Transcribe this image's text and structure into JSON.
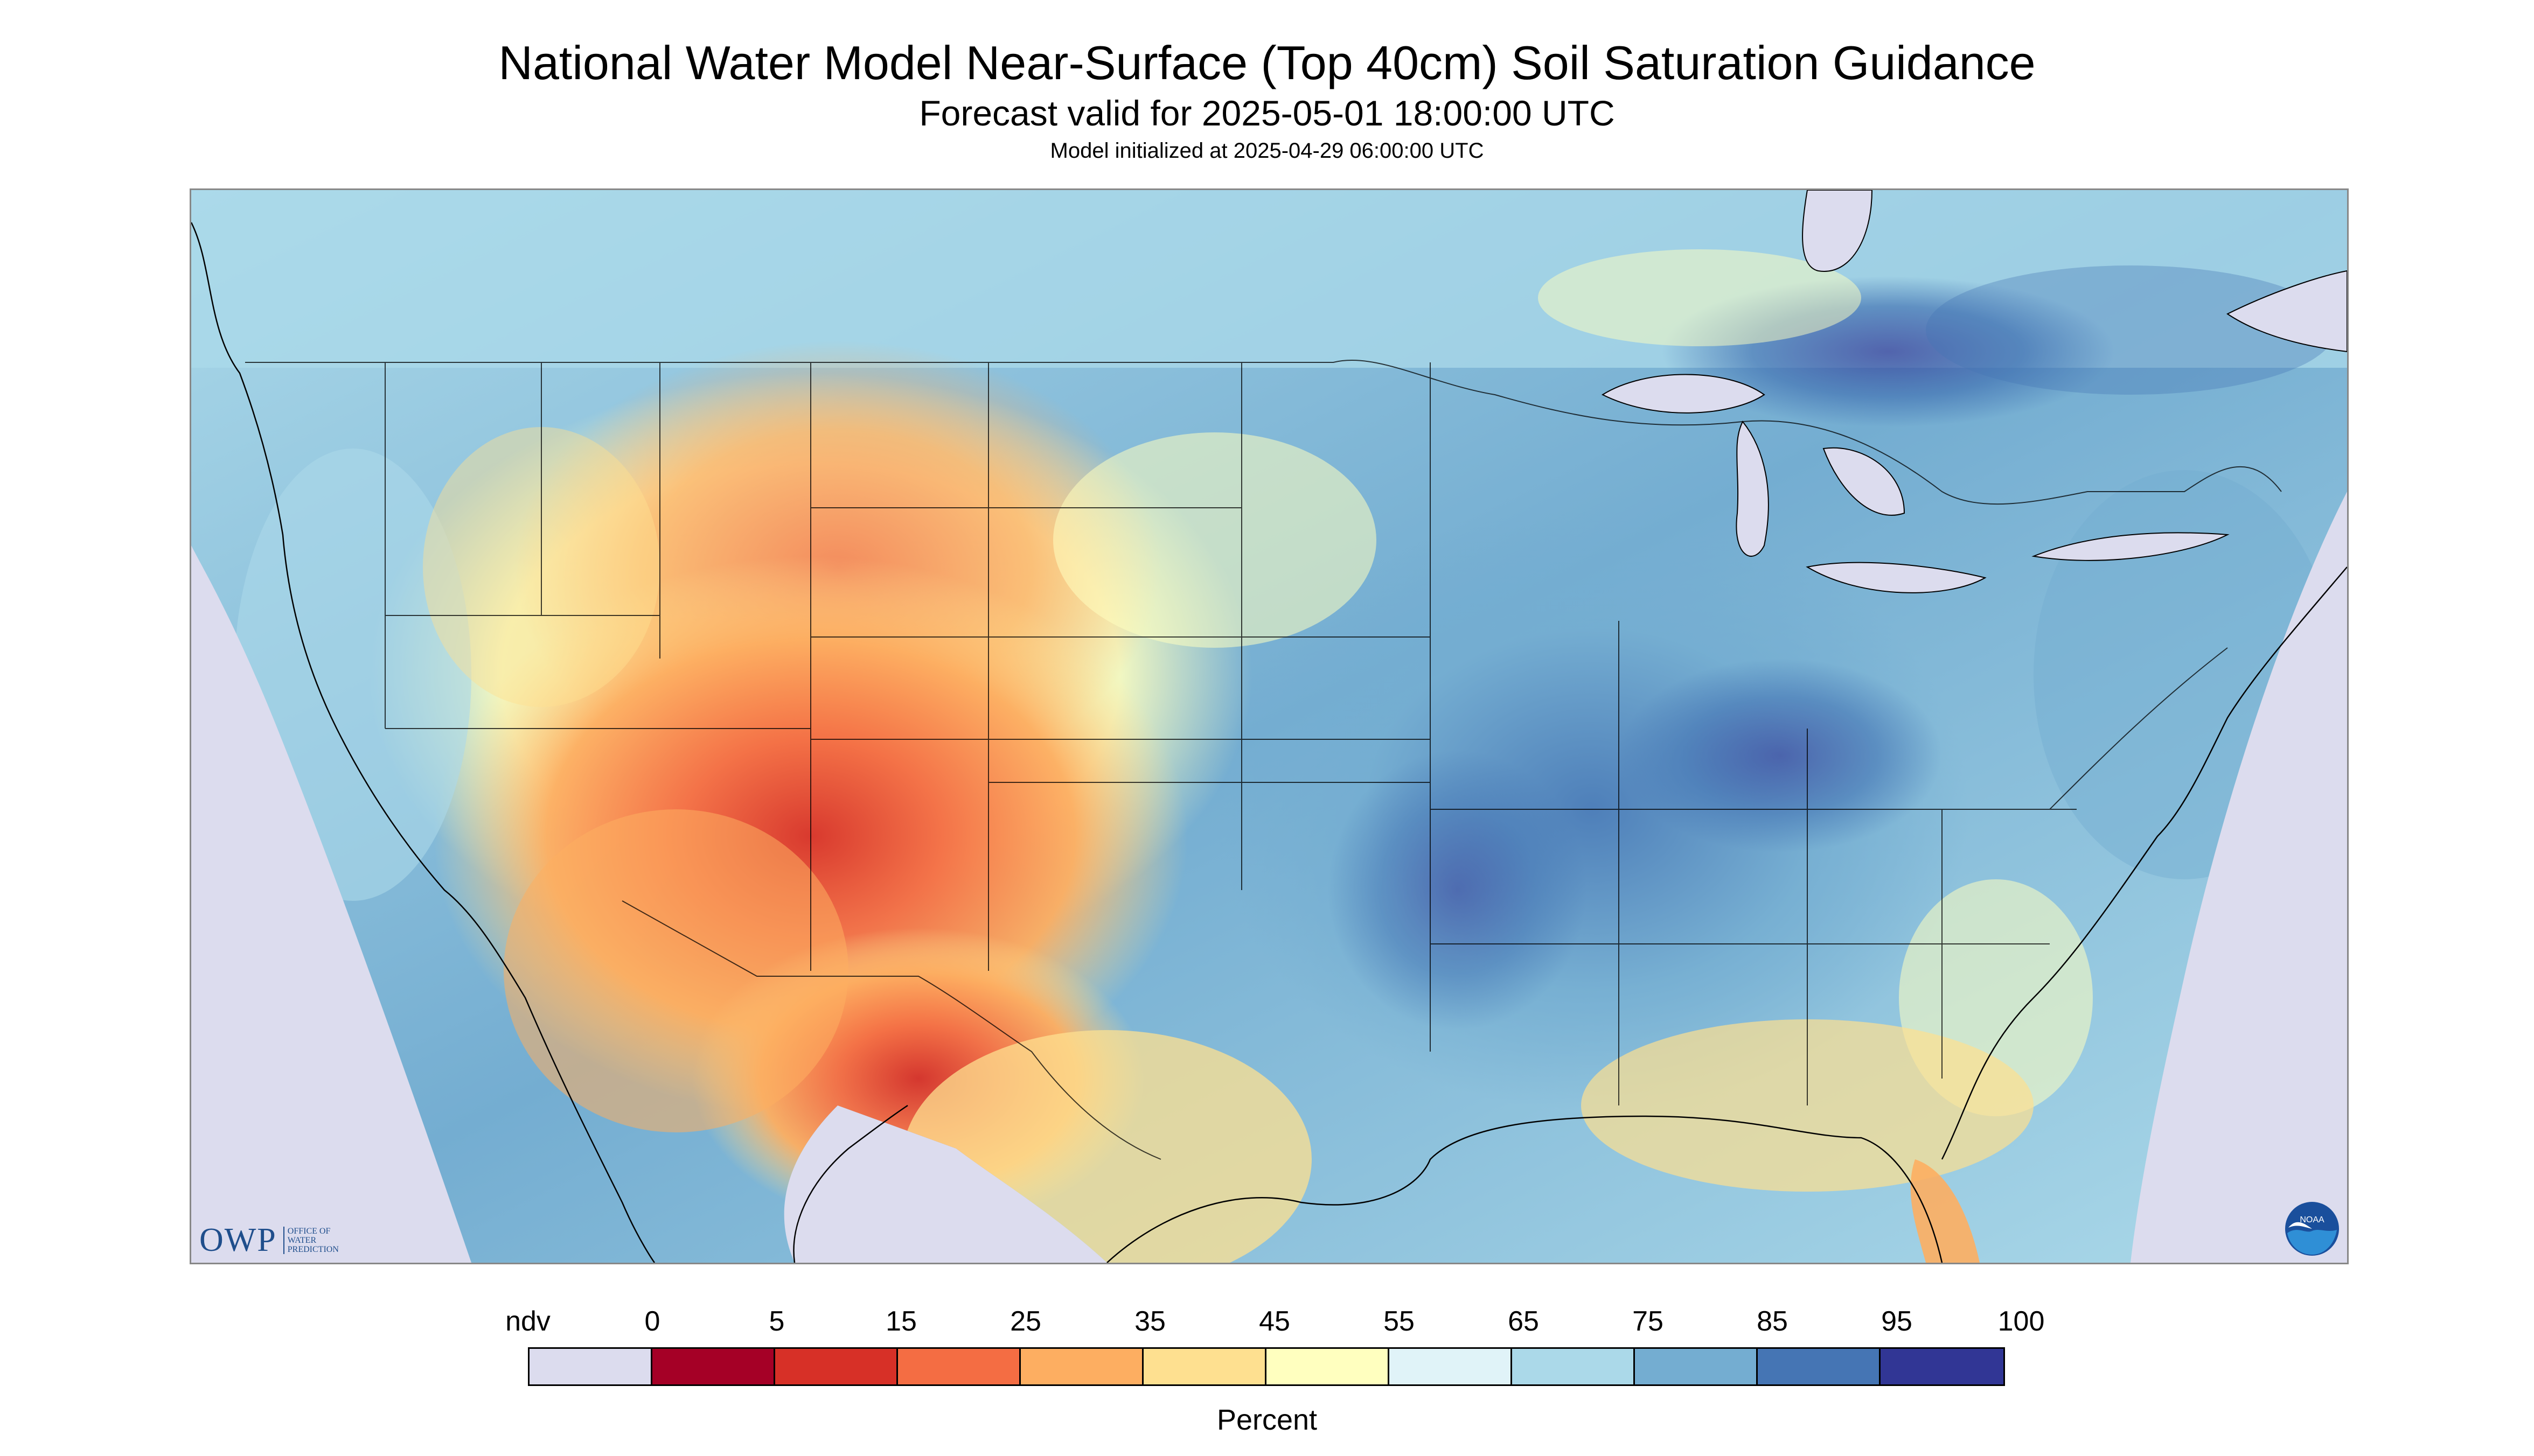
{
  "title": "National Water Model Near-Surface (Top 40cm) Soil Saturation Guidance",
  "subtitle": "Forecast valid for 2025-05-01 18:00:00 UTC",
  "init_line": "Model initialized at 2025-04-29 06:00:00 UTC",
  "logo_owp": {
    "word": "OWP",
    "sub_lines": [
      "OFFICE OF",
      "WATER",
      "PREDICTION"
    ]
  },
  "logo_noaa": {
    "word": "NOAA"
  },
  "colorbar": {
    "unit_label": "Percent",
    "tick_labels": [
      "ndv",
      "0",
      "5",
      "15",
      "25",
      "35",
      "45",
      "55",
      "65",
      "75",
      "85",
      "95",
      "100"
    ],
    "colors": [
      "#dcdcee",
      "#a50026",
      "#d73027",
      "#f46d43",
      "#fdae61",
      "#fee090",
      "#ffffbf",
      "#e0f3f8",
      "#abd9e9",
      "#74add1",
      "#4575b4",
      "#313695"
    ]
  },
  "map": {
    "background_ndv": "#dcdcee",
    "water_color": "#dcdcee",
    "border_color": "#000000"
  }
}
